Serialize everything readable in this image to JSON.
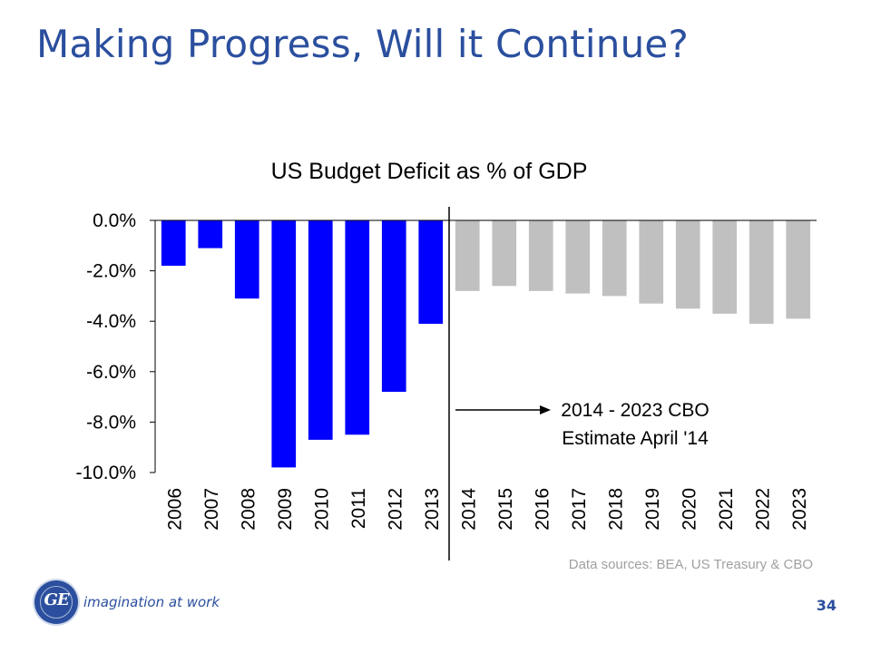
{
  "slide": {
    "title": "Making Progress, Will it Continue?",
    "tagline": "imagination at work",
    "logo_text": "GE",
    "page_number": "34"
  },
  "chart_data": {
    "type": "bar",
    "title": "US Budget Deficit as % of GDP",
    "xlabel": "",
    "ylabel": "",
    "ylim": [
      -10,
      0
    ],
    "y_ticks": [
      0,
      -2,
      -4,
      -6,
      -8,
      -10
    ],
    "y_tick_labels": [
      "0.0%",
      "-2.0%",
      "-4.0%",
      "-6.0%",
      "-8.0%",
      "-10.0%"
    ],
    "categories": [
      "2006",
      "2007",
      "2008",
      "2009",
      "2010",
      "2011",
      "2012",
      "2013",
      "2014",
      "2015",
      "2016",
      "2017",
      "2018",
      "2019",
      "2020",
      "2021",
      "2022",
      "2023"
    ],
    "values": [
      -1.8,
      -1.1,
      -3.1,
      -9.8,
      -8.7,
      -8.5,
      -6.8,
      -4.1,
      -2.8,
      -2.6,
      -2.8,
      -2.9,
      -3.0,
      -3.3,
      -3.5,
      -3.7,
      -4.1,
      -3.9
    ],
    "series_kind": [
      "actual",
      "actual",
      "actual",
      "actual",
      "actual",
      "actual",
      "actual",
      "actual",
      "estimate",
      "estimate",
      "estimate",
      "estimate",
      "estimate",
      "estimate",
      "estimate",
      "estimate",
      "estimate",
      "estimate"
    ],
    "colors": {
      "actual": "#0000ff",
      "estimate": "#c0c0c0",
      "text": "#000000",
      "title_text": "#2b4f9e"
    },
    "divider_after": "2013",
    "annotation": {
      "line1": "2014 - 2023 CBO",
      "line2": "Estimate April '14"
    },
    "source": "Data sources: BEA, US Treasury & CBO",
    "grid": false
  }
}
